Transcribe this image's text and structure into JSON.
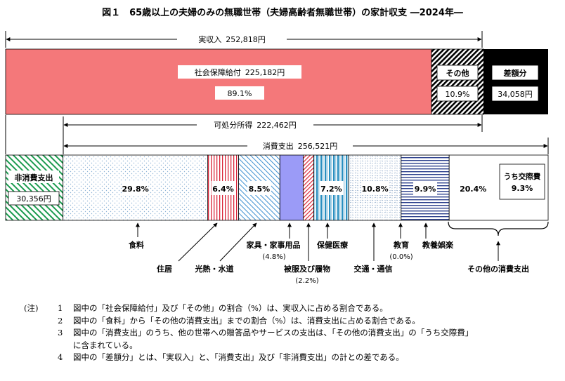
{
  "chart_data": {
    "type": "bar",
    "title": "図１　65歳以上の夫婦のみの無職世帯（夫婦高齢者無職世帯）の家計収支 ―2024年―",
    "income_bar": {
      "label": "実収入",
      "total": 252818,
      "total_text": "252,818円",
      "segments": [
        {
          "name": "社会保障給付",
          "value": 225182,
          "value_text": "225,182円",
          "percent": 89.1,
          "percent_text": "89.1%"
        },
        {
          "name": "その他",
          "value": 27636,
          "percent": 10.9,
          "percent_text": "10.9%"
        },
        {
          "name": "差額分",
          "value": 34058,
          "value_text": "34,058円"
        }
      ]
    },
    "disposable_income": {
      "label": "可処分所得",
      "value": 222462,
      "value_text": "222,462円"
    },
    "expenditure_bar": {
      "nonconsumption": {
        "name": "非消費支出",
        "value": 30356,
        "value_text": "30,356円"
      },
      "consumption": {
        "label": "消費支出",
        "total": 256521,
        "total_text": "256,521円",
        "categories": [
          {
            "name": "食料",
            "percent": 29.8,
            "percent_text": "29.8%"
          },
          {
            "name": "住居",
            "percent": 6.4,
            "percent_text": "6.4%"
          },
          {
            "name": "光熱・水道",
            "percent": 8.5,
            "percent_text": "8.5%"
          },
          {
            "name": "家具・家事用品",
            "percent": 4.8,
            "percent_text": "(4.8%)"
          },
          {
            "name": "被服及び履物",
            "percent": 2.2,
            "percent_text": "(2.2%)"
          },
          {
            "name": "保健医療",
            "percent": 7.2,
            "percent_text": "7.2%"
          },
          {
            "name": "交通・通信",
            "percent": 10.8,
            "percent_text": "10.8%"
          },
          {
            "name": "教育",
            "percent": 0.0,
            "percent_text": "(0.0%)"
          },
          {
            "name": "教養娯楽",
            "percent": 9.9,
            "percent_text": "9.9%"
          },
          {
            "name": "その他の消費支出",
            "percent": 20.4,
            "percent_text": "20.4%"
          }
        ],
        "inner_box": {
          "name": "うち交際費",
          "percent": 9.3,
          "percent_text": "9.3%"
        }
      }
    },
    "colors": {
      "social_security": "#f4787a",
      "other_income": "#000000",
      "difference": "#000000",
      "nonconsumption": "#1a9a4e",
      "food": "#8fb4d6",
      "housing": "#d9263a",
      "utilities": "#3d8fd0",
      "furniture": "#9b9bf7",
      "clothing": "#d9263a",
      "medical": "#2a8fc0",
      "transport": "#8fa9c8",
      "education": "#2b3f8c",
      "recreation": "#2b3f8c"
    }
  },
  "notes": {
    "header": "(注)",
    "items": [
      {
        "num": "1",
        "text": "図中の「社会保障給付」及び「その他」の割合（%）は、実収入に占める割合である。"
      },
      {
        "num": "2",
        "text": "図中の「食料」から「その他の消費支出」までの割合（%）は、消費支出に占める割合である。"
      },
      {
        "num": "3",
        "text": "図中の「消費支出」のうち、他の世帯への贈答品やサービスの支出は、「その他の消費支出」の「うち交際費」",
        "cont": "に含まれている。"
      },
      {
        "num": "4",
        "text": "図中の「差額分」とは、「実収入」と、「消費支出」及び「非消費支出」の計との差である。"
      }
    ]
  }
}
